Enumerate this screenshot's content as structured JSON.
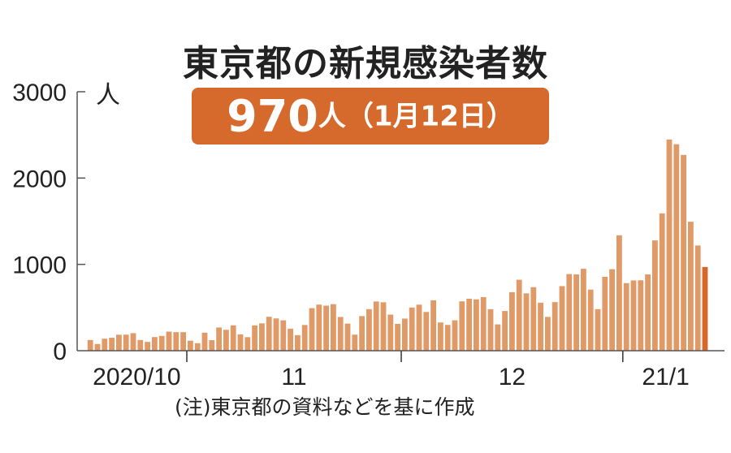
{
  "title": "東京都の新規感染者数",
  "badge": {
    "value": "970",
    "suffix": "人（1月12日）"
  },
  "note": "(注)東京都の資料などを基に作成",
  "colors": {
    "bar": "#e09a68",
    "highlight": "#d4692a",
    "badge": "#d66a2c",
    "axis": "#555555"
  },
  "chart_data": {
    "type": "bar",
    "unit_label": "人",
    "ylim": [
      0,
      3000
    ],
    "yticks": [
      "0",
      "1000",
      "2000",
      "3000"
    ],
    "grid": false,
    "month_labels": [
      "2020/10",
      "11",
      "12",
      "21/1"
    ],
    "start_date": "2020-10-18",
    "end_date": "2021-01-12",
    "highlight_last": true,
    "values": [
      124,
      78,
      139,
      150,
      185,
      186,
      203,
      124,
      102,
      158,
      171,
      221,
      215,
      215,
      116,
      87,
      209,
      122,
      269,
      242,
      294,
      189,
      157,
      293,
      317,
      393,
      374,
      352,
      255,
      180,
      298,
      493,
      534,
      522,
      539,
      391,
      314,
      186,
      401,
      481,
      570,
      561,
      418,
      311,
      372,
      500,
      533,
      449,
      584,
      327,
      299,
      352,
      572,
      602,
      595,
      621,
      480,
      305,
      460,
      678,
      822,
      664,
      736,
      556,
      392,
      563,
      748,
      888,
      884,
      949,
      708,
      481,
      856,
      944,
      1337,
      783,
      814,
      816,
      884,
      1278,
      1591,
      2447,
      2392,
      2268,
      1494,
      1219,
      970
    ]
  }
}
